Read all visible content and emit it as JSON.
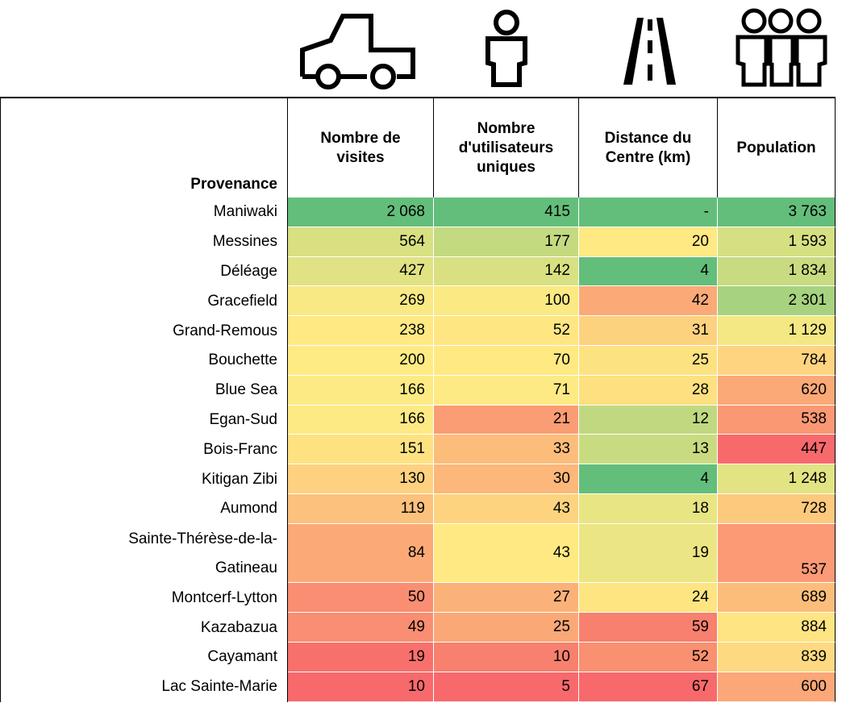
{
  "table": {
    "headers": [
      [
        "Provenance"
      ],
      [
        "Nombre de",
        "visites"
      ],
      [
        "Nombre",
        "d'utilisateurs",
        "uniques"
      ],
      [
        "Distance du",
        "Centre (km)"
      ],
      [
        "Population"
      ]
    ],
    "rows": [
      {
        "provenance": [
          "Maniwaki"
        ],
        "cells": [
          "2 068",
          "415",
          "-",
          "3 763"
        ]
      },
      {
        "provenance": [
          "Messines"
        ],
        "cells": [
          "564",
          "177",
          "20",
          "1 593"
        ]
      },
      {
        "provenance": [
          "Déléage"
        ],
        "cells": [
          "427",
          "142",
          "4",
          "1 834"
        ]
      },
      {
        "provenance": [
          "Gracefield"
        ],
        "cells": [
          "269",
          "100",
          "42",
          "2 301"
        ]
      },
      {
        "provenance": [
          "Grand-Remous"
        ],
        "cells": [
          "238",
          "52",
          "31",
          "1 129"
        ]
      },
      {
        "provenance": [
          "Bouchette"
        ],
        "cells": [
          "200",
          "70",
          "25",
          "784"
        ]
      },
      {
        "provenance": [
          "Blue Sea"
        ],
        "cells": [
          "166",
          "71",
          "28",
          "620"
        ]
      },
      {
        "provenance": [
          "Egan-Sud"
        ],
        "cells": [
          "166",
          "21",
          "12",
          "538"
        ]
      },
      {
        "provenance": [
          "Bois-Franc"
        ],
        "cells": [
          "151",
          "33",
          "13",
          "447"
        ]
      },
      {
        "provenance": [
          "Kitigan Zibi"
        ],
        "cells": [
          "130",
          "30",
          "4",
          "1 248"
        ]
      },
      {
        "provenance": [
          "Aumond"
        ],
        "cells": [
          "119",
          "43",
          "18",
          "728"
        ]
      },
      {
        "provenance": [
          "Sainte-Thérèse-de-la-",
          "Gatineau"
        ],
        "cells": [
          "84",
          "43",
          "19",
          "537"
        ]
      },
      {
        "provenance": [
          "Montcerf-Lytton"
        ],
        "cells": [
          "50",
          "27",
          "24",
          "689"
        ]
      },
      {
        "provenance": [
          "Kazabazua"
        ],
        "cells": [
          "49",
          "25",
          "59",
          "884"
        ]
      },
      {
        "provenance": [
          "Cayamant"
        ],
        "cells": [
          "19",
          "10",
          "52",
          "839"
        ]
      },
      {
        "provenance": [
          "Lac Sainte-Marie"
        ],
        "cells": [
          "10",
          "5",
          "67",
          "600"
        ]
      }
    ]
  }
}
